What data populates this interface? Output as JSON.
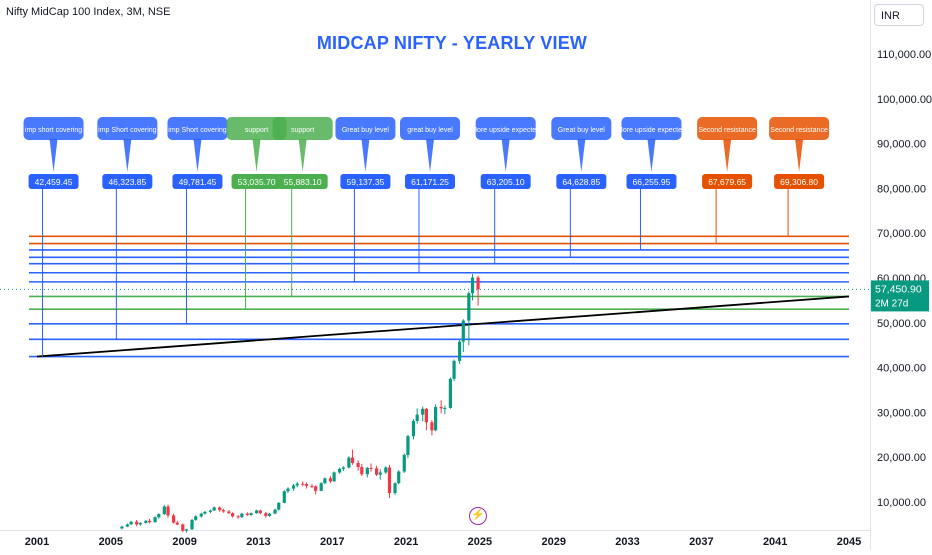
{
  "header": {
    "symbol": "Nifty MidCap 100 Index, 3M, NSE",
    "currency": "INR",
    "title": "MIDCAP NIFTY - YEARLY VIEW",
    "dividend_glyph": "⚡"
  },
  "colors": {
    "blue": "#2962ff",
    "green": "#4caf50",
    "orange": "#e65100",
    "up_candle": "#089981",
    "down_candle": "#f23645",
    "trendline": "#000000",
    "last_price": "#089981",
    "dividend": "#9c27b0"
  },
  "chart_data": {
    "type": "candlestick",
    "title": "MIDCAP NIFTY - YEARLY VIEW",
    "instrument": "Nifty MidCap 100 Index, 3M, NSE",
    "currency": "INR",
    "x_range": [
      2001,
      2045
    ],
    "y_range": [
      3000,
      117000
    ],
    "x_ticks": [
      "2001",
      "2005",
      "2009",
      "2013",
      "2017",
      "2021",
      "2025",
      "2029",
      "2033",
      "2037",
      "2041",
      "2045"
    ],
    "y_ticks": [
      "10,000.00",
      "20,000.00",
      "30,000.00",
      "40,000.00",
      "50,000.00",
      "60,000.00",
      "70,000.00",
      "80,000.00",
      "90,000.00",
      "100,000.00",
      "110,000.00"
    ],
    "last_price": {
      "value": "57,450.90",
      "countdown": "2M 27d",
      "raw": 57450.9
    },
    "candles": [
      {
        "t": 2005.6,
        "o": 4100,
        "h": 4700,
        "l": 3900,
        "c": 4500
      },
      {
        "t": 2005.9,
        "o": 4500,
        "h": 5200,
        "l": 4400,
        "c": 5000
      },
      {
        "t": 2006.1,
        "o": 5000,
        "h": 5800,
        "l": 4900,
        "c": 5600
      },
      {
        "t": 2006.4,
        "o": 5600,
        "h": 6000,
        "l": 4600,
        "c": 5000
      },
      {
        "t": 2006.6,
        "o": 5000,
        "h": 5500,
        "l": 4700,
        "c": 5300
      },
      {
        "t": 2006.9,
        "o": 5300,
        "h": 6000,
        "l": 5200,
        "c": 5800
      },
      {
        "t": 2007.1,
        "o": 5800,
        "h": 6200,
        "l": 5200,
        "c": 5500
      },
      {
        "t": 2007.4,
        "o": 5500,
        "h": 6800,
        "l": 5400,
        "c": 6600
      },
      {
        "t": 2007.6,
        "o": 6600,
        "h": 7500,
        "l": 6300,
        "c": 7300
      },
      {
        "t": 2007.9,
        "o": 7300,
        "h": 9300,
        "l": 7100,
        "c": 9000
      },
      {
        "t": 2008.1,
        "o": 9000,
        "h": 9400,
        "l": 6500,
        "c": 7000
      },
      {
        "t": 2008.4,
        "o": 7000,
        "h": 7400,
        "l": 5200,
        "c": 5400
      },
      {
        "t": 2008.6,
        "o": 5400,
        "h": 5800,
        "l": 4800,
        "c": 5000
      },
      {
        "t": 2008.9,
        "o": 5000,
        "h": 5200,
        "l": 3300,
        "c": 3600
      },
      {
        "t": 2009.1,
        "o": 3600,
        "h": 4000,
        "l": 3200,
        "c": 3900
      },
      {
        "t": 2009.4,
        "o": 3900,
        "h": 6200,
        "l": 3800,
        "c": 6000
      },
      {
        "t": 2009.6,
        "o": 6000,
        "h": 7000,
        "l": 5800,
        "c": 6800
      },
      {
        "t": 2009.9,
        "o": 6800,
        "h": 7600,
        "l": 6500,
        "c": 7400
      },
      {
        "t": 2010.1,
        "o": 7400,
        "h": 8000,
        "l": 7200,
        "c": 7800
      },
      {
        "t": 2010.4,
        "o": 7800,
        "h": 8300,
        "l": 7500,
        "c": 8100
      },
      {
        "t": 2010.6,
        "o": 8100,
        "h": 9000,
        "l": 8000,
        "c": 8800
      },
      {
        "t": 2010.9,
        "o": 8800,
        "h": 9000,
        "l": 7800,
        "c": 8200
      },
      {
        "t": 2011.1,
        "o": 8200,
        "h": 8500,
        "l": 7600,
        "c": 7900
      },
      {
        "t": 2011.4,
        "o": 7900,
        "h": 8200,
        "l": 7300,
        "c": 7500
      },
      {
        "t": 2011.6,
        "o": 7500,
        "h": 7700,
        "l": 6500,
        "c": 6800
      },
      {
        "t": 2011.9,
        "o": 6800,
        "h": 7100,
        "l": 6300,
        "c": 6600
      },
      {
        "t": 2012.1,
        "o": 6600,
        "h": 7600,
        "l": 6500,
        "c": 7400
      },
      {
        "t": 2012.4,
        "o": 7400,
        "h": 7700,
        "l": 6900,
        "c": 7100
      },
      {
        "t": 2012.6,
        "o": 7100,
        "h": 7700,
        "l": 6900,
        "c": 7500
      },
      {
        "t": 2012.9,
        "o": 7500,
        "h": 8300,
        "l": 7400,
        "c": 8100
      },
      {
        "t": 2013.1,
        "o": 8100,
        "h": 8300,
        "l": 7300,
        "c": 7500
      },
      {
        "t": 2013.4,
        "o": 7500,
        "h": 7800,
        "l": 6500,
        "c": 6900
      },
      {
        "t": 2013.6,
        "o": 6900,
        "h": 7600,
        "l": 6700,
        "c": 7400
      },
      {
        "t": 2013.9,
        "o": 7400,
        "h": 8500,
        "l": 7300,
        "c": 8300
      },
      {
        "t": 2014.1,
        "o": 8300,
        "h": 10000,
        "l": 8100,
        "c": 9800
      },
      {
        "t": 2014.4,
        "o": 9800,
        "h": 12600,
        "l": 9700,
        "c": 12400
      },
      {
        "t": 2014.6,
        "o": 12400,
        "h": 13300,
        "l": 12000,
        "c": 13000
      },
      {
        "t": 2014.9,
        "o": 13000,
        "h": 14000,
        "l": 12500,
        "c": 13700
      },
      {
        "t": 2015.1,
        "o": 13700,
        "h": 14500,
        "l": 13300,
        "c": 14100
      },
      {
        "t": 2015.4,
        "o": 14100,
        "h": 14600,
        "l": 13500,
        "c": 14000
      },
      {
        "t": 2015.6,
        "o": 14000,
        "h": 14400,
        "l": 13000,
        "c": 13600
      },
      {
        "t": 2015.9,
        "o": 13600,
        "h": 14000,
        "l": 13100,
        "c": 13500
      },
      {
        "t": 2016.1,
        "o": 13500,
        "h": 13700,
        "l": 11700,
        "c": 12500
      },
      {
        "t": 2016.4,
        "o": 12500,
        "h": 14400,
        "l": 12400,
        "c": 14200
      },
      {
        "t": 2016.6,
        "o": 14200,
        "h": 15500,
        "l": 14000,
        "c": 15300
      },
      {
        "t": 2016.9,
        "o": 15300,
        "h": 15800,
        "l": 14200,
        "c": 14600
      },
      {
        "t": 2017.1,
        "o": 14600,
        "h": 16800,
        "l": 14500,
        "c": 16600
      },
      {
        "t": 2017.4,
        "o": 16600,
        "h": 17700,
        "l": 16300,
        "c": 17400
      },
      {
        "t": 2017.6,
        "o": 17400,
        "h": 18000,
        "l": 16900,
        "c": 17700
      },
      {
        "t": 2017.9,
        "o": 17700,
        "h": 20200,
        "l": 17500,
        "c": 19900
      },
      {
        "t": 2018.1,
        "o": 19900,
        "h": 21700,
        "l": 18300,
        "c": 18700
      },
      {
        "t": 2018.4,
        "o": 18700,
        "h": 19300,
        "l": 17000,
        "c": 17800
      },
      {
        "t": 2018.6,
        "o": 17800,
        "h": 18500,
        "l": 15800,
        "c": 16200
      },
      {
        "t": 2018.9,
        "o": 16200,
        "h": 17800,
        "l": 15500,
        "c": 17600
      },
      {
        "t": 2019.1,
        "o": 17600,
        "h": 18600,
        "l": 16800,
        "c": 17500
      },
      {
        "t": 2019.4,
        "o": 17500,
        "h": 18100,
        "l": 15800,
        "c": 16100
      },
      {
        "t": 2019.6,
        "o": 16100,
        "h": 17300,
        "l": 15000,
        "c": 16600
      },
      {
        "t": 2019.9,
        "o": 16600,
        "h": 18000,
        "l": 16300,
        "c": 17700
      },
      {
        "t": 2020.1,
        "o": 17700,
        "h": 18300,
        "l": 10900,
        "c": 12000
      },
      {
        "t": 2020.4,
        "o": 12000,
        "h": 14400,
        "l": 11600,
        "c": 14200
      },
      {
        "t": 2020.6,
        "o": 14200,
        "h": 17100,
        "l": 14000,
        "c": 16800
      },
      {
        "t": 2020.9,
        "o": 16800,
        "h": 20800,
        "l": 16500,
        "c": 20500
      },
      {
        "t": 2021.1,
        "o": 20500,
        "h": 25000,
        "l": 19800,
        "c": 24700
      },
      {
        "t": 2021.4,
        "o": 24700,
        "h": 28500,
        "l": 24000,
        "c": 28100
      },
      {
        "t": 2021.6,
        "o": 28100,
        "h": 30900,
        "l": 27500,
        "c": 29500
      },
      {
        "t": 2021.9,
        "o": 29500,
        "h": 31300,
        "l": 28000,
        "c": 30800
      },
      {
        "t": 2022.1,
        "o": 30800,
        "h": 31000,
        "l": 26000,
        "c": 27800
      },
      {
        "t": 2022.4,
        "o": 27800,
        "h": 28300,
        "l": 24900,
        "c": 26000
      },
      {
        "t": 2022.6,
        "o": 26000,
        "h": 31800,
        "l": 25800,
        "c": 31200
      },
      {
        "t": 2022.9,
        "o": 31200,
        "h": 32700,
        "l": 29800,
        "c": 30900
      },
      {
        "t": 2023.1,
        "o": 30900,
        "h": 31500,
        "l": 29600,
        "c": 31000
      },
      {
        "t": 2023.4,
        "o": 31000,
        "h": 37800,
        "l": 30800,
        "c": 37500
      },
      {
        "t": 2023.6,
        "o": 37500,
        "h": 41800,
        "l": 37000,
        "c": 41500
      },
      {
        "t": 2023.9,
        "o": 41500,
        "h": 46200,
        "l": 40800,
        "c": 45800
      },
      {
        "t": 2024.1,
        "o": 45800,
        "h": 50800,
        "l": 43500,
        "c": 50500
      },
      {
        "t": 2024.4,
        "o": 50500,
        "h": 57000,
        "l": 45000,
        "c": 56600
      },
      {
        "t": 2024.6,
        "o": 56600,
        "h": 60900,
        "l": 55000,
        "c": 60100
      },
      {
        "t": 2024.9,
        "o": 60100,
        "h": 60500,
        "l": 53800,
        "c": 57450.9
      }
    ],
    "levels": [
      {
        "value": 42459.45,
        "label": "42,459.45",
        "note": "imp short covering",
        "color": "blue",
        "x": 2001.3
      },
      {
        "value": 46323.85,
        "label": "46,323.85",
        "note": "imp Short covering",
        "color": "blue",
        "x": 2005.3
      },
      {
        "value": 49781.45,
        "label": "49,781.45",
        "note": "imp Short covering",
        "color": "blue",
        "x": 2009.1
      },
      {
        "value": 53035.7,
        "label": "53,035.70",
        "note": "support",
        "color": "green",
        "x": 2012.3
      },
      {
        "value": 55883.1,
        "label": "55,883.10",
        "note": "support",
        "color": "green",
        "x": 2014.8
      },
      {
        "value": 59137.35,
        "label": "59,137.35",
        "note": "Great buy level",
        "color": "blue",
        "x": 2018.2
      },
      {
        "value": 61171.25,
        "label": "61,171.25",
        "note": "great buy level",
        "color": "blue",
        "x": 2021.7
      },
      {
        "value": 63205.1,
        "label": "63,205.10",
        "note": "More upside expected",
        "color": "blue",
        "x": 2025.8
      },
      {
        "value": 64628.85,
        "label": "64,628.85",
        "note": "Great buy level",
        "color": "blue",
        "x": 2029.9
      },
      {
        "value": 66255.95,
        "label": "66,255.95",
        "note": "More upside expected",
        "color": "blue",
        "x": 2033.7
      },
      {
        "value": 67679.65,
        "label": "67,679.65",
        "note": "Second resistance",
        "color": "orange",
        "x": 2037.8
      },
      {
        "value": 69306.8,
        "label": "69,306.80",
        "note": "Second resistance",
        "color": "orange",
        "x": 2041.7
      }
    ],
    "trendline": {
      "x1": 2001,
      "y1": 42459.45,
      "x2": 2045,
      "y2": 55883.1
    }
  }
}
